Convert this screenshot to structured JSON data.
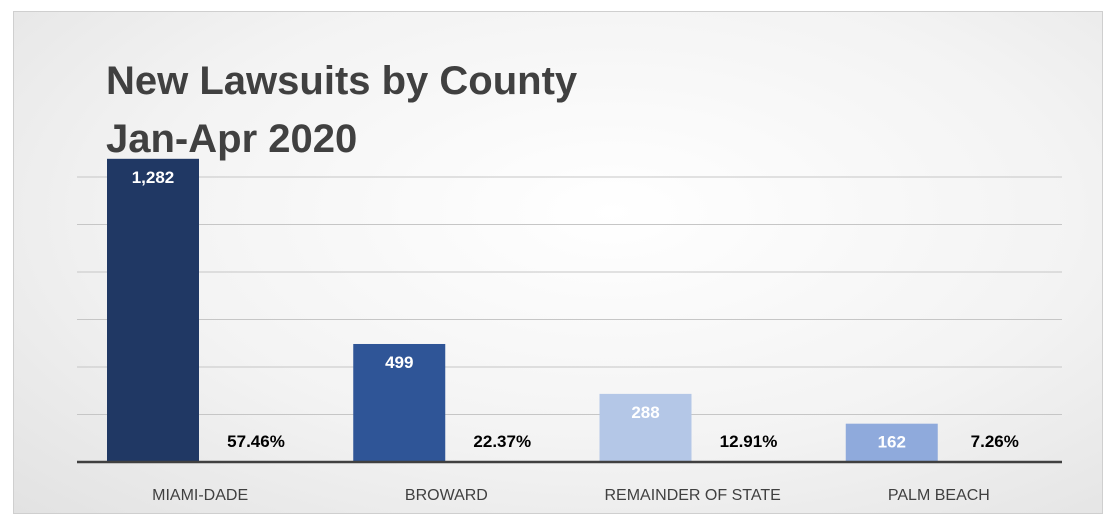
{
  "chart_data": {
    "type": "bar",
    "title": "New Lawsuits by County",
    "subtitle": "Jan-Apr 2020",
    "xlabel": "",
    "ylabel": "",
    "categories": [
      "MIAMI-DADE",
      "BROWARD",
      "REMAINDER OF STATE",
      "PALM BEACH"
    ],
    "values": [
      1282,
      499,
      288,
      162
    ],
    "value_labels": [
      "1,282",
      "499",
      "288",
      "162"
    ],
    "percentages": [
      "57.46%",
      "22.37%",
      "12.91%",
      "7.26%"
    ],
    "bar_colors": [
      "#203864",
      "#2f5597",
      "#b4c7e7",
      "#8faadc"
    ],
    "value_label_colors": [
      "#ffffff",
      "#ffffff",
      "#ffffff",
      "#ffffff"
    ],
    "ylim": [
      0,
      1300
    ],
    "grid": true,
    "legend": "none"
  }
}
